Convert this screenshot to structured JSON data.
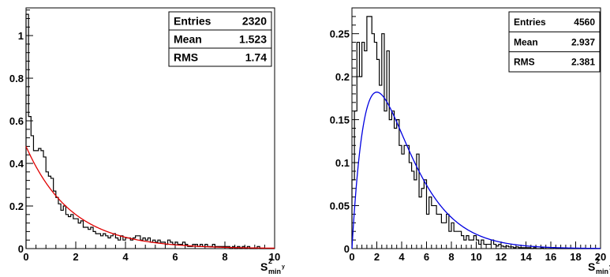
{
  "chart_data": [
    {
      "type": "histogram",
      "xlim": [
        0,
        10
      ],
      "ylim": [
        0,
        1.13
      ],
      "xticks": [
        0,
        2,
        4,
        6,
        8,
        10
      ],
      "yticks": [
        0,
        0.2,
        0.4,
        0.6,
        0.8,
        1
      ],
      "xlabel": {
        "main": "S",
        "sup": "2",
        "sub": "min",
        "subsup": "y"
      },
      "ylabel": "",
      "grid": false,
      "stats": {
        "entries_label": "Entries",
        "entries": "2320",
        "mean_label": "Mean",
        "mean": "1.523",
        "rms_label": "RMS",
        "rms": "1.74"
      },
      "histogram": {
        "x_min": 0,
        "bin_width": 0.1,
        "color": "#000000",
        "values": [
          1.1,
          0.62,
          0.53,
          0.46,
          0.46,
          0.47,
          0.46,
          0.43,
          0.36,
          0.34,
          0.33,
          0.27,
          0.24,
          0.21,
          0.18,
          0.2,
          0.16,
          0.15,
          0.16,
          0.14,
          0.14,
          0.12,
          0.13,
          0.1,
          0.1,
          0.09,
          0.1,
          0.08,
          0.07,
          0.07,
          0.06,
          0.07,
          0.06,
          0.05,
          0.06,
          0.07,
          0.05,
          0.04,
          0.06,
          0.04,
          0.05,
          0.05,
          0.04,
          0.05,
          0.06,
          0.06,
          0.04,
          0.05,
          0.04,
          0.05,
          0.03,
          0.04,
          0.03,
          0.04,
          0.03,
          0.03,
          0.02,
          0.04,
          0.03,
          0.02,
          0.03,
          0.02,
          0.02,
          0.03,
          0.02,
          0.01,
          0.01,
          0.02,
          0.02,
          0.01,
          0.02,
          0.01,
          0.02,
          0.01,
          0.01,
          0.02,
          0.01,
          0.01,
          0.01,
          0.01,
          0.01,
          0.01,
          0.0,
          0.01,
          0.0,
          0.01,
          0.0,
          0.01,
          0.0,
          0.01,
          0.0,
          0.0,
          0.0,
          0.01,
          0.0,
          0.0,
          0.0,
          0.0,
          0.0,
          0.0
        ]
      },
      "fit": {
        "type": "exponential",
        "amplitude": 0.48,
        "decay_rate": 0.55,
        "x_range": [
          0,
          10
        ],
        "color": "#e00000"
      }
    },
    {
      "type": "histogram",
      "xlim": [
        0,
        20
      ],
      "ylim": [
        0,
        0.28
      ],
      "xticks": [
        0,
        2,
        4,
        6,
        8,
        10,
        12,
        14,
        16,
        18,
        20
      ],
      "yticks": [
        0,
        0.05,
        0.1,
        0.15,
        0.2,
        0.25
      ],
      "xlabel": {
        "main": "S",
        "sup": "2",
        "sub": "min",
        "subsup": "y"
      },
      "ylabel": "",
      "grid": false,
      "stats": {
        "entries_label": "Entries",
        "entries": "4560",
        "mean_label": "Mean",
        "mean": "2.937",
        "rms_label": "RMS",
        "rms": "2.381"
      },
      "histogram": {
        "x_min": 0,
        "bin_width": 0.2,
        "color": "#000000",
        "values": [
          0.08,
          0.16,
          0.24,
          0.2,
          0.24,
          0.23,
          0.27,
          0.27,
          0.25,
          0.24,
          0.22,
          0.19,
          0.25,
          0.16,
          0.23,
          0.15,
          0.16,
          0.14,
          0.15,
          0.12,
          0.11,
          0.12,
          0.12,
          0.1,
          0.09,
          0.08,
          0.11,
          0.06,
          0.07,
          0.08,
          0.04,
          0.06,
          0.05,
          0.05,
          0.04,
          0.04,
          0.03,
          0.03,
          0.04,
          0.02,
          0.03,
          0.02,
          0.02,
          0.02,
          0.015,
          0.01,
          0.015,
          0.01,
          0.01,
          0.015,
          0.01,
          0.005,
          0.01,
          0.005,
          0.005,
          0.005,
          0.01,
          0.005,
          0.003,
          0.005,
          0.003,
          0.002,
          0.003,
          0.002,
          0.002,
          0.001,
          0.002,
          0.001,
          0.001,
          0.001,
          0.001,
          0.001,
          0.0,
          0.001,
          0.0,
          0.0,
          0.001,
          0.0,
          0.0,
          0.0,
          0.0,
          0.001,
          0.0,
          0.0,
          0.0,
          0.0,
          0.0,
          0.0,
          0.0,
          0.0,
          0.0,
          0.0,
          0.0,
          0.0,
          0.0,
          0.0,
          0.0,
          0.0,
          0.0,
          0.0
        ]
      },
      "fit": {
        "type": "chi-squared",
        "dof": 4,
        "amplitude": 0.182,
        "x_range": [
          0,
          20
        ],
        "color": "#0000e0"
      }
    }
  ]
}
